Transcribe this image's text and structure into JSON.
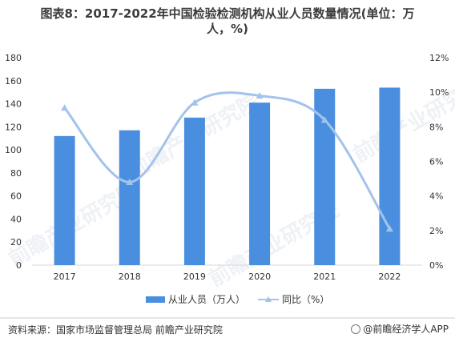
{
  "title_line1": "图表8：2017-2022年中国检验检测机构从业人员数量情况(单位：万",
  "title_line2": "人，%)",
  "source": "资料来源：国家市场监督管理总局 前瞻产业研究院",
  "brand": "@前瞻经济学人APP",
  "watermark": "前瞻产业研究院",
  "colors": {
    "bar": "#4a8ee0",
    "line": "#a3c3ec",
    "axis": "#d9d9d9",
    "text": "#333333"
  },
  "chart_data": {
    "type": "bar",
    "categories": [
      "2017",
      "2018",
      "2019",
      "2020",
      "2021",
      "2022"
    ],
    "series": [
      {
        "name": "从业人员（万人）",
        "type": "bar",
        "axis": "left",
        "values": [
          112,
          117,
          128,
          141,
          153,
          154
        ]
      },
      {
        "name": "同比（%）",
        "type": "line",
        "axis": "right",
        "smooth": true,
        "marker": "triangle",
        "values": [
          9.1,
          4.8,
          9.4,
          9.8,
          8.4,
          2.1
        ]
      }
    ],
    "y_left": {
      "min": 0,
      "max": 180,
      "ticks": [
        "0",
        "20",
        "40",
        "60",
        "80",
        "100",
        "120",
        "140",
        "160",
        "180"
      ]
    },
    "y_right": {
      "min": 0,
      "max": 12,
      "ticks": [
        "0%",
        "2%",
        "4%",
        "6%",
        "8%",
        "10%",
        "12%"
      ]
    },
    "grid": false,
    "legend": "bottom"
  }
}
